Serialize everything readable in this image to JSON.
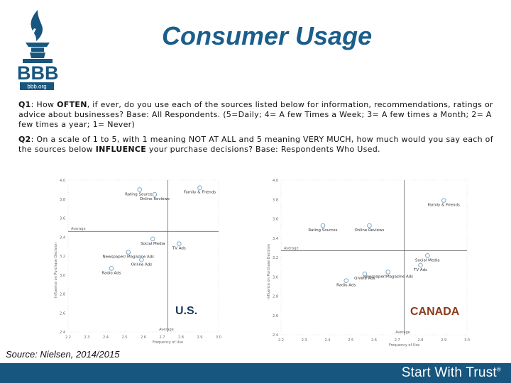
{
  "header": {
    "title": "Consumer Usage",
    "logo_text": "BBB",
    "logo_subtext": "bbb.org"
  },
  "questions": {
    "q1": {
      "label": "Q1",
      "pre": ": How ",
      "emph": "OFTEN",
      "post": ", if ever, do you use each of the sources listed below for information, recommendations, ratings or advice about businesses? Base: All Respondents. (5=Daily; 4= A few Times a Week; 3= A few times a Month; 2= A few times a year; 1= Never)"
    },
    "q2": {
      "label": "Q2",
      "pre": ": On a scale of 1 to 5, with 1 meaning NOT AT ALL and 5 meaning VERY MUCH, how much would you say each of the sources below ",
      "emph": "INFLUENCE",
      "post": " your purchase decisions? Base: Respondents Who Used."
    }
  },
  "chart_data": [
    {
      "type": "scatter",
      "title": "U.S.",
      "xlabel": "Frequency of Use",
      "ylabel": "Influence on Purchase Decision",
      "x_ticks": [
        "2.2",
        "2.3",
        "2.4",
        "2.5",
        "2.6",
        "2.7",
        "2.8",
        "2.9",
        "3.0"
      ],
      "y_ticks": [
        "4.0",
        "3.8",
        "3.6",
        "3.4",
        "3.2",
        "3.0",
        "2.8",
        "2.6",
        "2.4"
      ],
      "xlim": [
        2.2,
        3.0
      ],
      "ylim": [
        2.4,
        4.0
      ],
      "avg_x_label": "Average",
      "avg_y_label": "Average",
      "avg_x": 2.73,
      "avg_y": 3.46,
      "points": [
        {
          "label": "Family & Friends",
          "x": 2.9,
          "y": 3.92
        },
        {
          "label": "Rating Sources",
          "x": 2.58,
          "y": 3.9
        },
        {
          "label": "Online Reviews",
          "x": 2.66,
          "y": 3.85
        },
        {
          "label": "Social Media",
          "x": 2.65,
          "y": 3.38
        },
        {
          "label": "TV Ads",
          "x": 2.79,
          "y": 3.33
        },
        {
          "label": "Newspaper/ Magazine Ads",
          "x": 2.52,
          "y": 3.24
        },
        {
          "label": "Online Ads",
          "x": 2.59,
          "y": 3.16
        },
        {
          "label": "Radio Ads",
          "x": 2.43,
          "y": 3.07
        }
      ]
    },
    {
      "type": "scatter",
      "title": "CANADA",
      "xlabel": "Frequency of Use",
      "ylabel": "Influence on Purchase Decision",
      "x_ticks": [
        "2.2",
        "2.3",
        "2.4",
        "2.5",
        "2.6",
        "2.7",
        "2.8",
        "2.9",
        "3.0"
      ],
      "y_ticks": [
        "4.0",
        "3.8",
        "3.6",
        "3.4",
        "3.2",
        "3.0",
        "2.8",
        "2.6",
        "2.4"
      ],
      "xlim": [
        2.2,
        3.0
      ],
      "ylim": [
        2.4,
        4.0
      ],
      "avg_x_label": "Average",
      "avg_y_label": "Average",
      "avg_x": 2.73,
      "avg_y": 3.27,
      "points": [
        {
          "label": "Family & Friends",
          "x": 2.9,
          "y": 3.79
        },
        {
          "label": "Rating Sources",
          "x": 2.38,
          "y": 3.53
        },
        {
          "label": "Online Reviews",
          "x": 2.58,
          "y": 3.53
        },
        {
          "label": "Social Media",
          "x": 2.83,
          "y": 3.22
        },
        {
          "label": "TV Ads",
          "x": 2.8,
          "y": 3.12
        },
        {
          "label": "Newspaper/Magazine Ads",
          "x": 2.66,
          "y": 3.05
        },
        {
          "label": "Online Ads",
          "x": 2.56,
          "y": 3.03
        },
        {
          "label": "Radio Ads",
          "x": 2.48,
          "y": 2.96
        }
      ]
    }
  ],
  "source": "Source: Nielsen, 2014/2015",
  "footer": {
    "text": "Start With Trust",
    "mark": "®"
  },
  "colors": {
    "brand": "#17567f",
    "title": "#1b5e8c",
    "us_label": "#1b3a5c",
    "canada_label": "#8b3a1a",
    "point": "#7fa8c9"
  }
}
